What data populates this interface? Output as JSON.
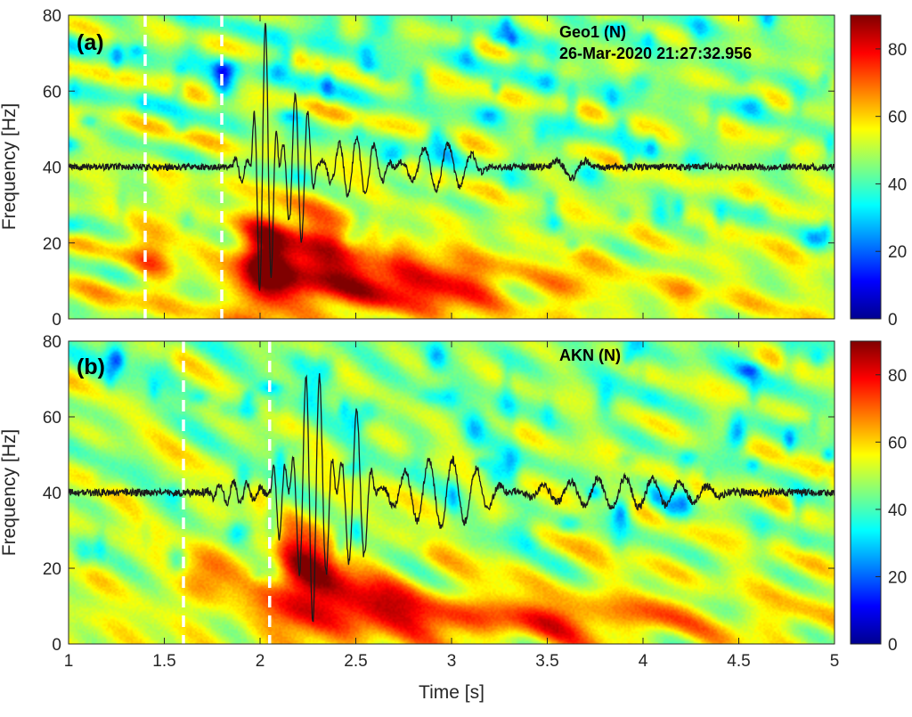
{
  "chart_data": [
    {
      "type": "heatmap",
      "panel_label": "(a)",
      "station": "Geo1 (N)",
      "timestamp": "26-Mar-2020 21:27:32.956",
      "xlabel": "Time [s]",
      "ylabel": "Frequency [Hz]",
      "xlim": [
        1,
        5
      ],
      "ylim": [
        0,
        80
      ],
      "xticks": [
        "1",
        "1.5",
        "2",
        "2.5",
        "3",
        "3.5",
        "4",
        "4.5",
        "5"
      ],
      "yticks": [
        "0",
        "20",
        "40",
        "60",
        "80"
      ],
      "colorbar": {
        "min": 0,
        "max": 90,
        "ticks": [
          "0",
          "20",
          "40",
          "60",
          "80"
        ]
      },
      "background_level": 50,
      "energy_blobs": [
        {
          "t": 1.45,
          "f": 18,
          "st": 0.08,
          "sf": 7,
          "a": 16
        },
        {
          "t": 2.02,
          "f": 14,
          "st": 0.1,
          "sf": 9,
          "a": 42
        },
        {
          "t": 2.3,
          "f": 16,
          "st": 0.15,
          "sf": 9,
          "a": 30
        },
        {
          "t": 2.65,
          "f": 10,
          "st": 0.2,
          "sf": 6,
          "a": 26
        },
        {
          "t": 3.05,
          "f": 9,
          "st": 0.18,
          "sf": 5,
          "a": 22
        },
        {
          "t": 3.62,
          "f": 10,
          "st": 0.1,
          "sf": 5,
          "a": 14
        },
        {
          "t": 4.22,
          "f": 8,
          "st": 0.07,
          "sf": 3,
          "a": 8
        }
      ],
      "markers_s": [
        1.4,
        1.8
      ],
      "waveform": {
        "baseline_hz": 40,
        "noise": 0.9,
        "bursts": [
          {
            "t0": 1.85,
            "t1": 1.95,
            "amp": 4,
            "freq": 14
          },
          {
            "t0": 1.95,
            "t1": 2.1,
            "amp": 38,
            "freq": 16
          },
          {
            "t0": 2.1,
            "t1": 2.3,
            "amp": 20,
            "freq": 15
          },
          {
            "t0": 2.3,
            "t1": 2.7,
            "amp": 8,
            "freq": 11
          },
          {
            "t0": 2.7,
            "t1": 3.2,
            "amp": 6,
            "freq": 8
          },
          {
            "t0": 3.5,
            "t1": 3.75,
            "amp": 3,
            "freq": 6
          }
        ]
      }
    },
    {
      "type": "heatmap",
      "panel_label": "(b)",
      "station": "AKN (N)",
      "xlabel": "Time [s]",
      "ylabel": "Frequency [Hz]",
      "xlim": [
        1,
        5
      ],
      "ylim": [
        0,
        80
      ],
      "xticks": [
        "1",
        "1.5",
        "2",
        "2.5",
        "3",
        "3.5",
        "4",
        "4.5",
        "5"
      ],
      "yticks": [
        "0",
        "20",
        "40",
        "60",
        "80"
      ],
      "colorbar": {
        "min": 0,
        "max": 90,
        "ticks": [
          "0",
          "20",
          "40",
          "60",
          "80"
        ]
      },
      "background_level": 50,
      "energy_blobs": [
        {
          "t": 1.72,
          "f": 18,
          "st": 0.1,
          "sf": 6,
          "a": 15
        },
        {
          "t": 2.22,
          "f": 18,
          "st": 0.14,
          "sf": 9,
          "a": 34
        },
        {
          "t": 2.55,
          "f": 10,
          "st": 0.22,
          "sf": 6,
          "a": 26
        },
        {
          "t": 3.1,
          "f": 7,
          "st": 0.3,
          "sf": 4,
          "a": 20
        },
        {
          "t": 3.65,
          "f": 7,
          "st": 0.2,
          "sf": 4,
          "a": 16
        },
        {
          "t": 4.05,
          "f": 7,
          "st": 0.15,
          "sf": 4,
          "a": 12
        },
        {
          "t": 4.65,
          "f": 6,
          "st": 0.12,
          "sf": 3,
          "a": 9
        }
      ],
      "markers_s": [
        1.6,
        2.05
      ],
      "waveform": {
        "baseline_hz": 40,
        "noise": 1.0,
        "bursts": [
          {
            "t0": 1.7,
            "t1": 2.05,
            "amp": 3,
            "freq": 14
          },
          {
            "t0": 2.05,
            "t1": 2.15,
            "amp": 12,
            "freq": 15
          },
          {
            "t0": 2.15,
            "t1": 2.4,
            "amp": 34,
            "freq": 14
          },
          {
            "t0": 2.4,
            "t1": 2.6,
            "amp": 22,
            "freq": 12
          },
          {
            "t0": 2.6,
            "t1": 3.3,
            "amp": 9,
            "freq": 8
          },
          {
            "t0": 3.3,
            "t1": 4.5,
            "amp": 4,
            "freq": 7
          }
        ]
      }
    }
  ]
}
